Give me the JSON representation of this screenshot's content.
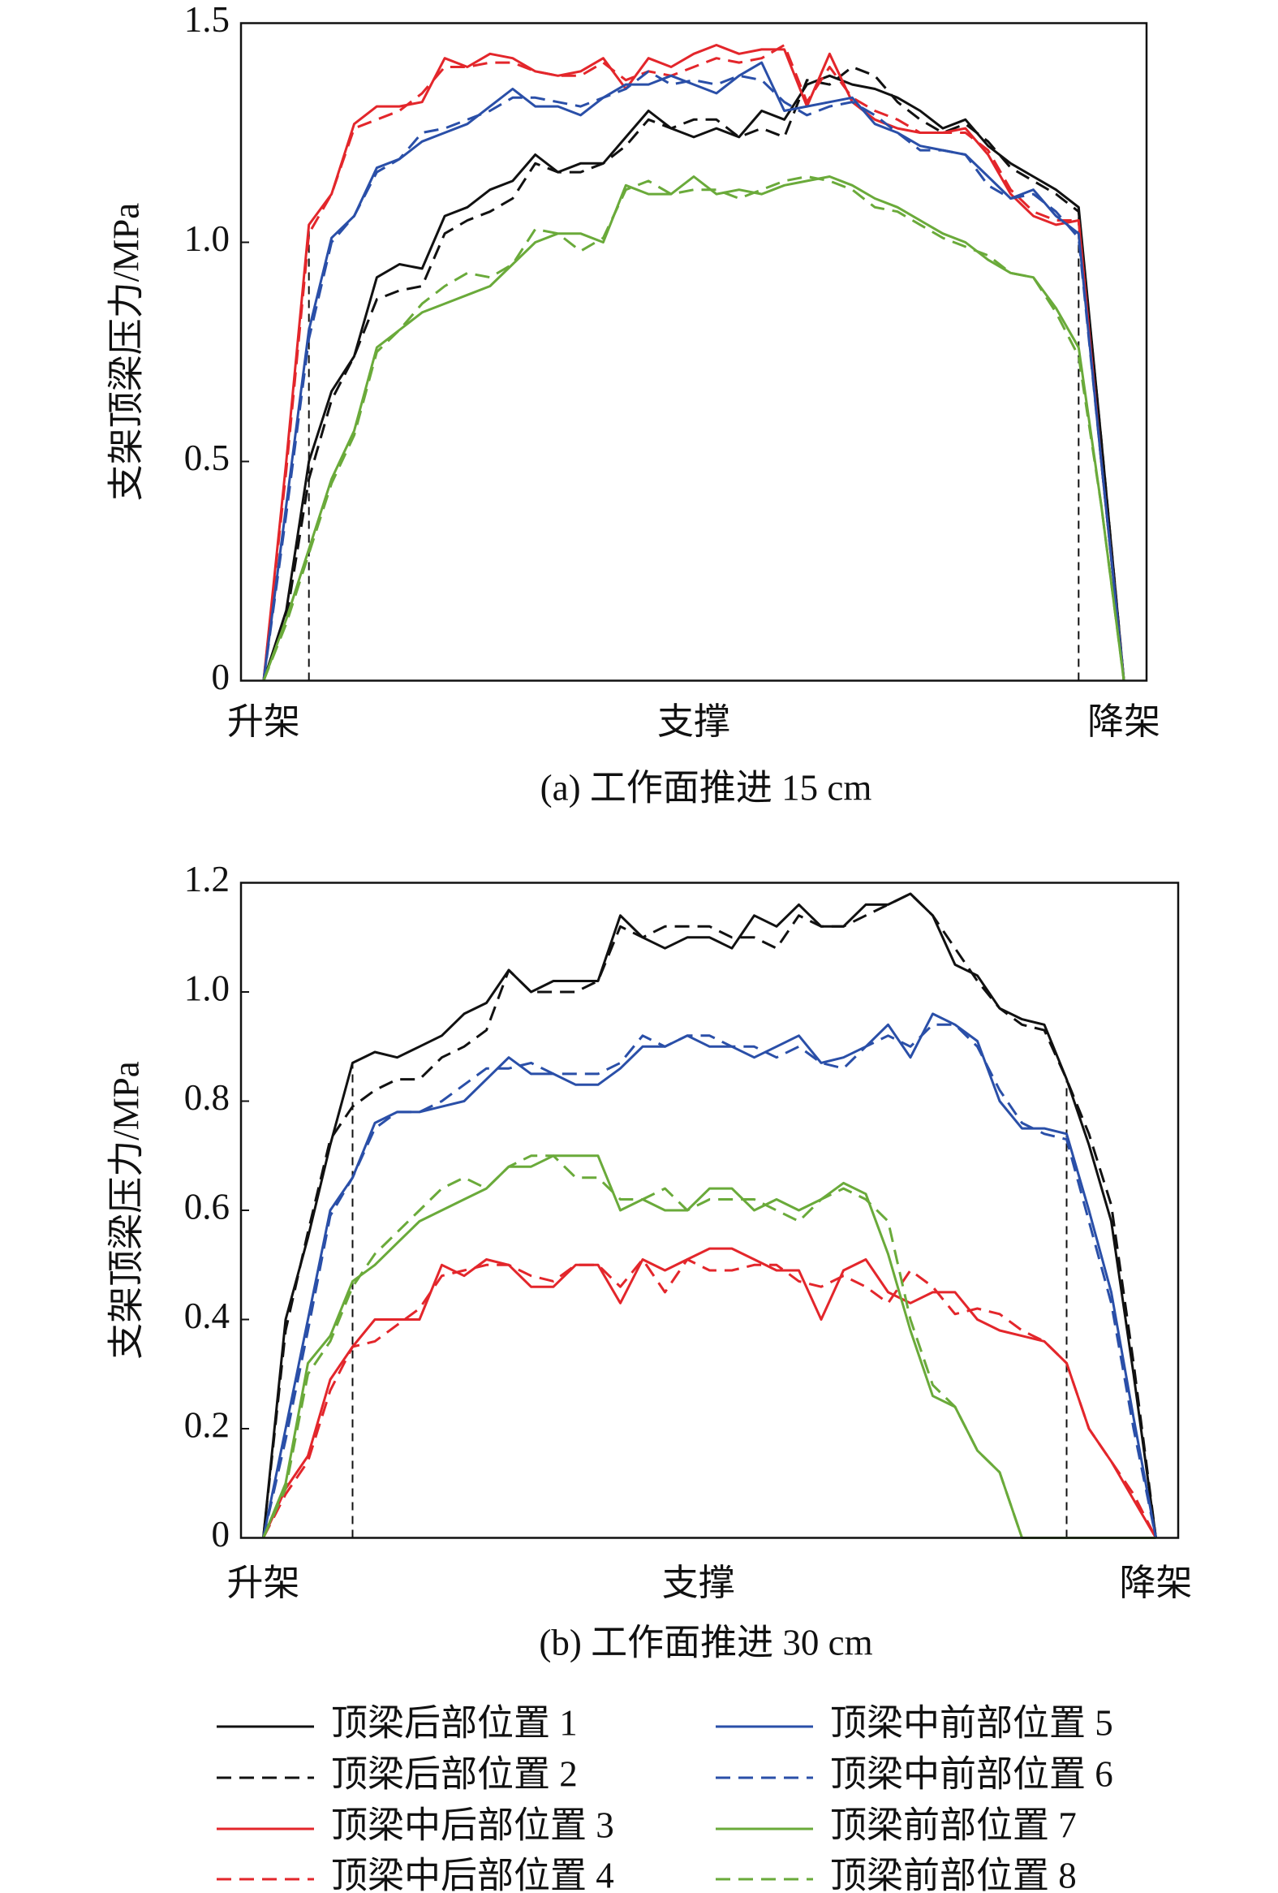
{
  "chart_data": [
    {
      "type": "line",
      "title": "(a) 工作面推进 15 cm",
      "ylabel": "支架顶梁压力/MPa",
      "x": [
        0,
        1,
        2,
        3,
        4,
        5,
        6,
        7,
        8,
        9,
        10,
        11,
        12,
        13,
        14,
        15,
        16,
        17,
        18,
        19,
        20,
        21,
        22,
        23,
        24,
        25,
        26,
        27,
        28,
        29,
        30,
        31,
        32,
        33,
        34,
        35,
        36,
        37,
        38
      ],
      "xlim": [
        -1,
        39
      ],
      "xticks": [
        {
          "value": 0,
          "label": "升架"
        },
        {
          "value": 19,
          "label": "支撑"
        },
        {
          "value": 38,
          "label": "降架"
        }
      ],
      "ylim": [
        0,
        1.5
      ],
      "yticks": [
        0,
        0.5,
        {
          "value": 1,
          "label": "1.0"
        },
        1.5
      ],
      "vlines": [
        2,
        36
      ],
      "series": [
        {
          "name": "顶梁后部位置 1",
          "color": "#111111",
          "dashed": false,
          "values": [
            0,
            0.16,
            0.5,
            0.66,
            0.74,
            0.92,
            0.95,
            0.94,
            1.06,
            1.08,
            1.12,
            1.14,
            1.2,
            1.16,
            1.18,
            1.18,
            1.24,
            1.3,
            1.26,
            1.24,
            1.26,
            1.24,
            1.3,
            1.28,
            1.36,
            1.38,
            1.36,
            1.35,
            1.33,
            1.3,
            1.26,
            1.28,
            1.22,
            1.18,
            1.15,
            1.12,
            1.08,
            0.55,
            0
          ]
        },
        {
          "name": "顶梁后部位置 2",
          "color": "#111111",
          "dashed": true,
          "values": [
            0,
            0.14,
            0.46,
            0.64,
            0.74,
            0.87,
            0.89,
            0.9,
            1.02,
            1.05,
            1.07,
            1.1,
            1.18,
            1.16,
            1.16,
            1.18,
            1.22,
            1.28,
            1.26,
            1.28,
            1.28,
            1.24,
            1.26,
            1.24,
            1.37,
            1.36,
            1.4,
            1.38,
            1.32,
            1.28,
            1.25,
            1.27,
            1.23,
            1.17,
            1.14,
            1.11,
            1.07,
            0.55,
            0
          ]
        },
        {
          "name": "顶梁中后部位置 3",
          "color": "#e3262b",
          "dashed": false,
          "values": [
            0,
            0.5,
            1.04,
            1.11,
            1.27,
            1.31,
            1.31,
            1.32,
            1.42,
            1.4,
            1.43,
            1.42,
            1.39,
            1.38,
            1.39,
            1.42,
            1.35,
            1.42,
            1.4,
            1.43,
            1.45,
            1.43,
            1.44,
            1.44,
            1.31,
            1.43,
            1.32,
            1.28,
            1.26,
            1.25,
            1.25,
            1.26,
            1.2,
            1.11,
            1.06,
            1.04,
            1.05,
            0.5,
            0
          ]
        },
        {
          "name": "顶梁中后部位置 4",
          "color": "#e3262b",
          "dashed": true,
          "values": [
            0,
            0.48,
            1.02,
            1.11,
            1.26,
            1.28,
            1.3,
            1.34,
            1.4,
            1.4,
            1.41,
            1.41,
            1.39,
            1.38,
            1.38,
            1.41,
            1.37,
            1.39,
            1.38,
            1.4,
            1.42,
            1.41,
            1.42,
            1.45,
            1.32,
            1.4,
            1.33,
            1.3,
            1.28,
            1.25,
            1.25,
            1.25,
            1.21,
            1.12,
            1.07,
            1.05,
            1.05,
            0.5,
            0
          ]
        },
        {
          "name": "顶梁中前部位置 5",
          "color": "#2a4fa8",
          "dashed": false,
          "values": [
            0,
            0.4,
            0.8,
            1.01,
            1.06,
            1.17,
            1.19,
            1.23,
            1.25,
            1.27,
            1.31,
            1.35,
            1.31,
            1.31,
            1.29,
            1.33,
            1.36,
            1.36,
            1.38,
            1.36,
            1.34,
            1.38,
            1.41,
            1.3,
            1.31,
            1.32,
            1.33,
            1.27,
            1.25,
            1.22,
            1.21,
            1.2,
            1.15,
            1.1,
            1.12,
            1.06,
            1.02,
            0.5,
            0
          ]
        },
        {
          "name": "顶梁中前部位置 6",
          "color": "#2a4fa8",
          "dashed": true,
          "values": [
            0,
            0.38,
            0.78,
            1,
            1.06,
            1.16,
            1.19,
            1.25,
            1.26,
            1.28,
            1.3,
            1.33,
            1.33,
            1.32,
            1.31,
            1.33,
            1.35,
            1.39,
            1.36,
            1.37,
            1.36,
            1.38,
            1.37,
            1.32,
            1.29,
            1.31,
            1.32,
            1.29,
            1.25,
            1.21,
            1.21,
            1.2,
            1.13,
            1.1,
            1.11,
            1.07,
            1.01,
            0.5,
            0
          ]
        },
        {
          "name": "顶梁前部位置 7",
          "color": "#6aaa3a",
          "dashed": false,
          "values": [
            0,
            0.14,
            0.3,
            0.46,
            0.57,
            0.76,
            0.8,
            0.84,
            0.86,
            0.88,
            0.9,
            0.95,
            1,
            1.02,
            1.02,
            1,
            1.13,
            1.11,
            1.11,
            1.15,
            1.11,
            1.12,
            1.11,
            1.13,
            1.14,
            1.15,
            1.13,
            1.1,
            1.08,
            1.05,
            1.02,
            1,
            0.96,
            0.93,
            0.92,
            0.85,
            0.76,
            0.4,
            0
          ]
        },
        {
          "name": "顶梁前部位置 8",
          "color": "#6aaa3a",
          "dashed": true,
          "values": [
            0,
            0.13,
            0.29,
            0.45,
            0.56,
            0.75,
            0.8,
            0.86,
            0.9,
            0.93,
            0.92,
            0.95,
            1.03,
            1.02,
            0.98,
            1.01,
            1.12,
            1.14,
            1.11,
            1.12,
            1.12,
            1.1,
            1.12,
            1.14,
            1.15,
            1.14,
            1.12,
            1.08,
            1.07,
            1.04,
            1.01,
            0.99,
            0.97,
            0.93,
            0.92,
            0.84,
            0.74,
            0.4,
            0
          ]
        }
      ]
    },
    {
      "type": "line",
      "title": "(b) 工作面推进 30 cm",
      "ylabel": "支架顶梁压力/MPa",
      "x": [
        0,
        1,
        2,
        3,
        4,
        5,
        6,
        7,
        8,
        9,
        10,
        11,
        12,
        13,
        14,
        15,
        16,
        17,
        18,
        19,
        20,
        21,
        22,
        23,
        24,
        25,
        26,
        27,
        28,
        29,
        30,
        31,
        32,
        33,
        34,
        35,
        36,
        37,
        38,
        39,
        40
      ],
      "xlim": [
        -1,
        41
      ],
      "xticks": [
        {
          "value": 0,
          "label": "升架"
        },
        {
          "value": 19.5,
          "label": "支撑"
        },
        {
          "value": 40,
          "label": "降架"
        }
      ],
      "ylim": [
        0,
        1.2
      ],
      "yticks": [
        0,
        0.2,
        0.4,
        0.6,
        0.8,
        {
          "value": 1,
          "label": "1.0"
        },
        1.2
      ],
      "vlines": [
        4,
        36
      ],
      "series": [
        {
          "color": "#111111",
          "dashed": false,
          "values": [
            0,
            0.4,
            0.55,
            0.72,
            0.87,
            0.89,
            0.88,
            0.9,
            0.92,
            0.96,
            0.98,
            1.04,
            1,
            1.02,
            1.02,
            1.02,
            1.14,
            1.1,
            1.08,
            1.1,
            1.1,
            1.08,
            1.14,
            1.12,
            1.16,
            1.12,
            1.12,
            1.16,
            1.16,
            1.18,
            1.14,
            1.05,
            1.03,
            0.97,
            0.95,
            0.94,
            0.84,
            0.72,
            0.58,
            0.3,
            0
          ]
        },
        {
          "color": "#111111",
          "dashed": true,
          "values": [
            0,
            0.38,
            0.56,
            0.73,
            0.79,
            0.82,
            0.84,
            0.84,
            0.88,
            0.9,
            0.93,
            1.04,
            1,
            1,
            1,
            1.02,
            1.12,
            1.1,
            1.12,
            1.12,
            1.12,
            1.1,
            1.1,
            1.08,
            1.14,
            1.12,
            1.12,
            1.14,
            1.16,
            1.18,
            1.14,
            1.08,
            1.02,
            0.97,
            0.94,
            0.93,
            0.84,
            0.74,
            0.61,
            0.32,
            0
          ]
        },
        {
          "color": "#e3262b",
          "dashed": false,
          "values": [
            0,
            0.09,
            0.15,
            0.29,
            0.35,
            0.4,
            0.4,
            0.4,
            0.5,
            0.48,
            0.51,
            0.5,
            0.46,
            0.46,
            0.5,
            0.5,
            0.43,
            0.51,
            0.49,
            0.51,
            0.53,
            0.53,
            0.51,
            0.49,
            0.49,
            0.4,
            0.49,
            0.51,
            0.45,
            0.43,
            0.45,
            0.45,
            0.4,
            0.38,
            0.37,
            0.36,
            0.32,
            0.2,
            0.14,
            0.07,
            0
          ]
        },
        {
          "color": "#e3262b",
          "dashed": true,
          "values": [
            0,
            0.08,
            0.14,
            0.27,
            0.35,
            0.36,
            0.39,
            0.42,
            0.48,
            0.49,
            0.5,
            0.5,
            0.48,
            0.47,
            0.5,
            0.5,
            0.46,
            0.51,
            0.45,
            0.51,
            0.49,
            0.49,
            0.5,
            0.5,
            0.47,
            0.46,
            0.48,
            0.46,
            0.43,
            0.49,
            0.46,
            0.41,
            0.42,
            0.41,
            0.38,
            0.36,
            0.32,
            0.2,
            0.14,
            0.08,
            0
          ]
        },
        {
          "color": "#2a4fa8",
          "dashed": false,
          "values": [
            0,
            0.2,
            0.4,
            0.6,
            0.66,
            0.76,
            0.78,
            0.78,
            0.79,
            0.8,
            0.84,
            0.88,
            0.85,
            0.85,
            0.83,
            0.83,
            0.86,
            0.9,
            0.9,
            0.92,
            0.9,
            0.9,
            0.88,
            0.9,
            0.92,
            0.87,
            0.88,
            0.9,
            0.94,
            0.88,
            0.96,
            0.94,
            0.91,
            0.8,
            0.75,
            0.75,
            0.74,
            0.6,
            0.45,
            0.22,
            0
          ]
        },
        {
          "color": "#2a4fa8",
          "dashed": true,
          "values": [
            0,
            0.18,
            0.38,
            0.59,
            0.66,
            0.75,
            0.78,
            0.78,
            0.8,
            0.83,
            0.86,
            0.86,
            0.87,
            0.85,
            0.85,
            0.85,
            0.87,
            0.92,
            0.9,
            0.92,
            0.92,
            0.9,
            0.9,
            0.88,
            0.9,
            0.87,
            0.86,
            0.9,
            0.92,
            0.9,
            0.94,
            0.94,
            0.9,
            0.82,
            0.76,
            0.74,
            0.73,
            0.58,
            0.43,
            0.2,
            0
          ]
        },
        {
          "color": "#6aaa3a",
          "dashed": false,
          "values": [
            0,
            0.1,
            0.32,
            0.37,
            0.47,
            0.5,
            0.54,
            0.58,
            0.6,
            0.62,
            0.64,
            0.68,
            0.68,
            0.7,
            0.7,
            0.7,
            0.6,
            0.62,
            0.6,
            0.6,
            0.64,
            0.64,
            0.6,
            0.62,
            0.6,
            0.62,
            0.65,
            0.63,
            0.52,
            0.38,
            0.26,
            0.24,
            0.16,
            0.12,
            0,
            0,
            0,
            0,
            0,
            0,
            0
          ]
        },
        {
          "color": "#6aaa3a",
          "dashed": true,
          "values": [
            0,
            0.09,
            0.3,
            0.36,
            0.46,
            0.52,
            0.56,
            0.6,
            0.64,
            0.66,
            0.64,
            0.68,
            0.7,
            0.7,
            0.66,
            0.66,
            0.62,
            0.62,
            0.64,
            0.6,
            0.62,
            0.62,
            0.62,
            0.6,
            0.58,
            0.62,
            0.64,
            0.62,
            0.58,
            0.4,
            0.28,
            0.24,
            0.16,
            0.12,
            0,
            0,
            0,
            0,
            0,
            0,
            0
          ]
        }
      ]
    }
  ]
}
